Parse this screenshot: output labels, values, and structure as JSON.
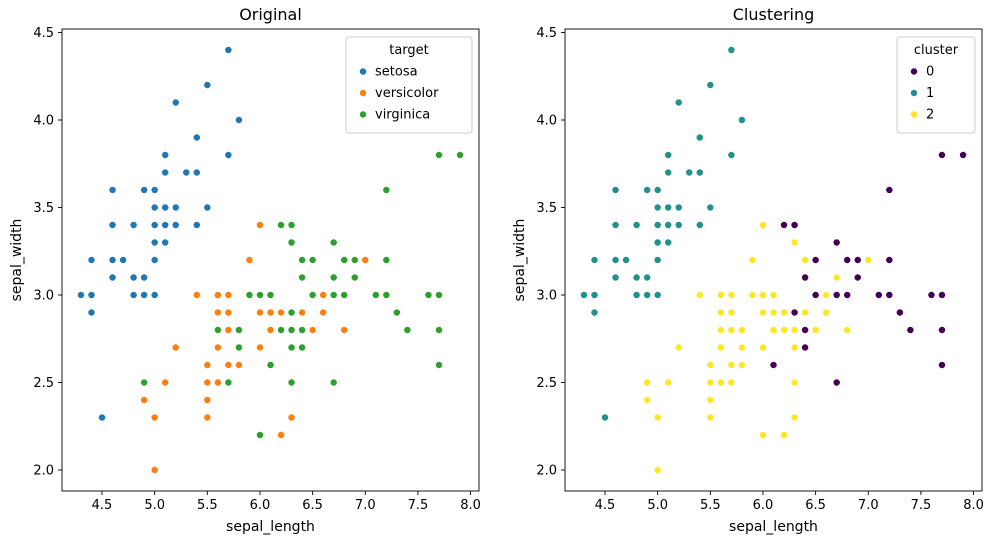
{
  "figure": {
    "background": "#ffffff"
  },
  "chart_data": {
    "type": "scatter",
    "xlabel": "sepal_length",
    "ylabel": "sepal_width",
    "xlim": [
      4.12,
      8.08
    ],
    "ylim": [
      1.88,
      4.52
    ],
    "xticks": [
      "4.5",
      "5.0",
      "5.5",
      "6.0",
      "6.5",
      "7.0",
      "7.5",
      "8.0"
    ],
    "yticks": [
      "2.0",
      "2.5",
      "3.0",
      "3.5",
      "4.0",
      "4.5"
    ],
    "panels": [
      {
        "title": "Original",
        "hue": "target",
        "legend_title": "target",
        "classes": [
          "setosa",
          "versicolor",
          "virginica"
        ],
        "colors": [
          "#1f77b4",
          "#ff7f0e",
          "#2ca02c"
        ]
      },
      {
        "title": "Clustering",
        "hue": "cluster",
        "legend_title": "cluster",
        "classes": [
          "0",
          "1",
          "2"
        ],
        "colors": [
          "#440154",
          "#21918c",
          "#fde725"
        ]
      }
    ],
    "points": {
      "sepal_length": [
        5.1,
        4.9,
        4.7,
        4.6,
        5.0,
        5.4,
        4.6,
        5.0,
        4.4,
        4.9,
        5.4,
        4.8,
        4.8,
        4.3,
        5.8,
        5.7,
        5.4,
        5.1,
        5.7,
        5.1,
        5.4,
        5.1,
        4.6,
        5.1,
        4.8,
        5.0,
        5.0,
        5.2,
        5.2,
        4.7,
        4.8,
        5.4,
        5.2,
        5.5,
        4.9,
        5.0,
        5.5,
        4.9,
        4.4,
        5.1,
        5.0,
        4.5,
        4.4,
        5.0,
        5.1,
        4.8,
        5.1,
        4.6,
        5.3,
        5.0,
        7.0,
        6.4,
        6.9,
        5.5,
        6.5,
        5.7,
        6.3,
        4.9,
        6.6,
        5.2,
        5.0,
        5.9,
        6.0,
        6.1,
        5.6,
        6.7,
        5.6,
        5.8,
        6.2,
        5.6,
        5.9,
        6.1,
        6.3,
        6.1,
        6.4,
        6.6,
        6.8,
        6.7,
        6.0,
        5.7,
        5.5,
        5.5,
        5.8,
        6.0,
        5.4,
        6.0,
        6.7,
        6.3,
        5.6,
        5.5,
        5.5,
        6.1,
        5.8,
        5.0,
        5.6,
        5.7,
        5.7,
        6.2,
        5.1,
        5.7,
        6.3,
        5.8,
        7.1,
        6.3,
        6.5,
        7.6,
        4.9,
        7.3,
        6.7,
        7.2,
        6.5,
        6.4,
        6.8,
        5.7,
        5.8,
        6.4,
        6.5,
        7.7,
        7.7,
        6.0,
        6.9,
        5.6,
        7.7,
        6.3,
        6.7,
        7.2,
        6.2,
        6.1,
        6.4,
        7.2,
        7.4,
        7.9,
        6.4,
        6.3,
        6.1,
        7.7,
        6.3,
        6.4,
        6.0,
        6.9,
        6.7,
        6.9,
        5.8,
        6.8,
        6.7,
        6.7,
        6.3,
        6.5,
        6.2,
        5.9
      ],
      "sepal_width": [
        3.5,
        3.0,
        3.2,
        3.1,
        3.6,
        3.9,
        3.4,
        3.4,
        2.9,
        3.1,
        3.7,
        3.4,
        3.0,
        3.0,
        4.0,
        4.4,
        3.9,
        3.5,
        3.8,
        3.8,
        3.4,
        3.7,
        3.6,
        3.3,
        3.4,
        3.0,
        3.4,
        3.5,
        3.4,
        3.2,
        3.1,
        3.4,
        4.1,
        4.2,
        3.1,
        3.2,
        3.5,
        3.6,
        3.0,
        3.4,
        3.5,
        2.3,
        3.2,
        3.5,
        3.8,
        3.0,
        3.8,
        3.2,
        3.7,
        3.3,
        3.2,
        3.2,
        3.1,
        2.3,
        2.8,
        2.8,
        3.3,
        2.4,
        2.9,
        2.7,
        2.0,
        3.0,
        2.2,
        2.9,
        2.9,
        3.1,
        3.0,
        2.7,
        2.2,
        2.5,
        3.2,
        2.8,
        2.5,
        2.8,
        2.9,
        3.0,
        2.8,
        3.0,
        2.9,
        2.6,
        2.4,
        2.4,
        2.7,
        2.7,
        3.0,
        3.4,
        3.1,
        2.3,
        3.0,
        2.5,
        2.6,
        3.0,
        2.6,
        2.3,
        2.7,
        3.0,
        2.9,
        2.9,
        2.5,
        2.8,
        3.3,
        2.7,
        3.0,
        2.9,
        3.0,
        3.0,
        2.5,
        2.9,
        2.5,
        3.6,
        3.2,
        2.7,
        3.0,
        2.5,
        2.8,
        3.2,
        3.0,
        3.8,
        2.6,
        2.2,
        3.2,
        2.8,
        2.8,
        2.7,
        3.3,
        3.2,
        2.8,
        3.0,
        2.8,
        3.0,
        2.8,
        3.8,
        2.8,
        2.8,
        2.6,
        3.0,
        3.4,
        3.1,
        3.0,
        3.1,
        3.1,
        3.1,
        2.7,
        3.2,
        3.3,
        3.0,
        2.5,
        3.0,
        3.4,
        3.0
      ],
      "target": [
        0,
        0,
        0,
        0,
        0,
        0,
        0,
        0,
        0,
        0,
        0,
        0,
        0,
        0,
        0,
        0,
        0,
        0,
        0,
        0,
        0,
        0,
        0,
        0,
        0,
        0,
        0,
        0,
        0,
        0,
        0,
        0,
        0,
        0,
        0,
        0,
        0,
        0,
        0,
        0,
        0,
        0,
        0,
        0,
        0,
        0,
        0,
        0,
        0,
        0,
        1,
        1,
        1,
        1,
        1,
        1,
        1,
        1,
        1,
        1,
        1,
        1,
        1,
        1,
        1,
        1,
        1,
        1,
        1,
        1,
        1,
        1,
        1,
        1,
        1,
        1,
        1,
        1,
        1,
        1,
        1,
        1,
        1,
        1,
        1,
        1,
        1,
        1,
        1,
        1,
        1,
        1,
        1,
        1,
        1,
        1,
        1,
        1,
        1,
        1,
        2,
        2,
        2,
        2,
        2,
        2,
        2,
        2,
        2,
        2,
        2,
        2,
        2,
        2,
        2,
        2,
        2,
        2,
        2,
        2,
        2,
        2,
        2,
        2,
        2,
        2,
        2,
        2,
        2,
        2,
        2,
        2,
        2,
        2,
        2,
        2,
        2,
        2,
        2,
        2,
        2,
        2,
        2,
        2,
        2,
        2,
        2,
        2,
        2,
        2
      ],
      "cluster": [
        1,
        1,
        1,
        1,
        1,
        1,
        1,
        1,
        1,
        1,
        1,
        1,
        1,
        1,
        1,
        1,
        1,
        1,
        1,
        1,
        1,
        1,
        1,
        1,
        1,
        1,
        1,
        1,
        1,
        1,
        1,
        1,
        1,
        1,
        1,
        1,
        1,
        1,
        1,
        1,
        1,
        1,
        1,
        1,
        1,
        1,
        1,
        1,
        1,
        1,
        2,
        2,
        0,
        2,
        2,
        2,
        2,
        2,
        2,
        2,
        2,
        2,
        2,
        2,
        2,
        2,
        2,
        2,
        2,
        2,
        2,
        2,
        2,
        2,
        2,
        2,
        2,
        0,
        2,
        2,
        2,
        2,
        2,
        2,
        2,
        2,
        2,
        2,
        2,
        2,
        2,
        2,
        2,
        2,
        2,
        2,
        2,
        2,
        2,
        2,
        0,
        2,
        0,
        0,
        0,
        0,
        2,
        0,
        0,
        0,
        0,
        0,
        0,
        2,
        2,
        0,
        0,
        0,
        0,
        2,
        0,
        2,
        0,
        2,
        0,
        0,
        2,
        2,
        0,
        0,
        0,
        0,
        0,
        2,
        0,
        0,
        0,
        0,
        2,
        0,
        0,
        0,
        2,
        0,
        0,
        0,
        2,
        0,
        0,
        2
      ]
    }
  }
}
